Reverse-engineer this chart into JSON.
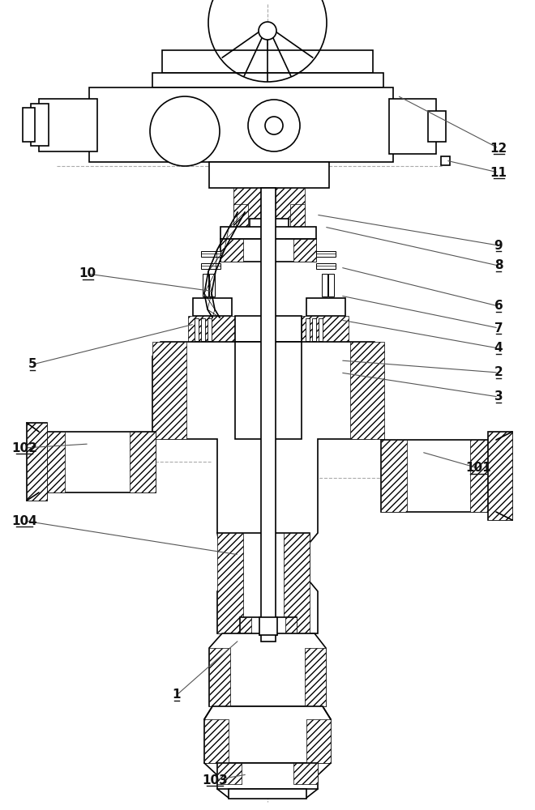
{
  "bg_color": "#ffffff",
  "line_color": "#000000",
  "centerline_color": "#aaaaaa",
  "label_color": "#111111",
  "fig_width": 6.6,
  "fig_height": 10.0,
  "dpi": 100,
  "label_data": [
    [
      "12",
      615,
      183,
      490,
      118
    ],
    [
      "11",
      615,
      213,
      550,
      198
    ],
    [
      "9",
      615,
      303,
      390,
      265
    ],
    [
      "8",
      615,
      328,
      400,
      280
    ],
    [
      "6",
      615,
      378,
      420,
      330
    ],
    [
      "7",
      615,
      405,
      420,
      365
    ],
    [
      "4",
      615,
      430,
      420,
      395
    ],
    [
      "2",
      615,
      460,
      420,
      445
    ],
    [
      "3",
      615,
      490,
      420,
      460
    ],
    [
      "5",
      40,
      450,
      240,
      400
    ],
    [
      "10",
      108,
      338,
      265,
      360
    ],
    [
      "101",
      590,
      578,
      520,
      558
    ],
    [
      "102",
      30,
      553,
      110,
      548
    ],
    [
      "104",
      30,
      643,
      295,
      685
    ],
    [
      "1",
      218,
      858,
      295,
      790
    ],
    [
      "103",
      265,
      963,
      305,
      956
    ]
  ]
}
